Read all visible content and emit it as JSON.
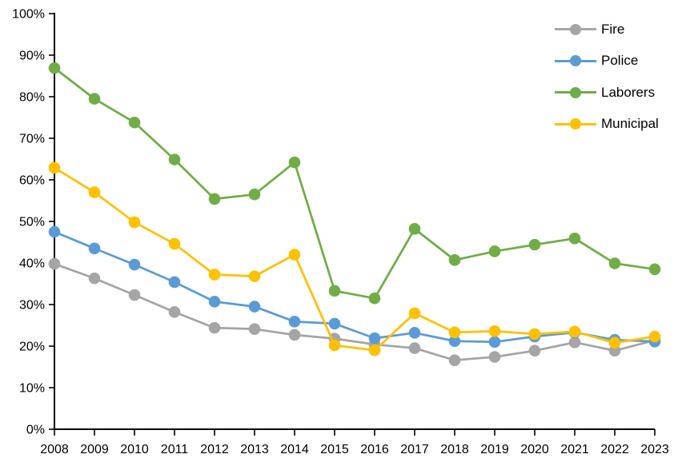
{
  "chart_data": {
    "type": "line",
    "title": "",
    "xlabel": "",
    "ylabel": "",
    "x": [
      2008,
      2009,
      2010,
      2011,
      2012,
      2013,
      2014,
      2015,
      2016,
      2017,
      2018,
      2019,
      2020,
      2021,
      2022,
      2023
    ],
    "series": [
      {
        "name": "Fire",
        "color": "#A5A5A5",
        "values": [
          39.8,
          36.3,
          32.3,
          28.2,
          24.4,
          24.1,
          22.7,
          21.8,
          20.4,
          19.5,
          16.6,
          17.4,
          18.9,
          20.9,
          18.9,
          21.4
        ]
      },
      {
        "name": "Police",
        "color": "#5B9BD5",
        "values": [
          47.5,
          43.5,
          39.6,
          35.4,
          30.7,
          29.5,
          25.9,
          25.4,
          21.9,
          23.2,
          21.2,
          21.0,
          22.3,
          23.3,
          21.5,
          21.1
        ]
      },
      {
        "name": "Laborers",
        "color": "#70AD47",
        "values": [
          86.9,
          79.5,
          73.8,
          64.9,
          55.4,
          56.5,
          64.2,
          33.3,
          31.5,
          48.2,
          40.7,
          42.8,
          44.4,
          45.9,
          39.9,
          38.5
        ]
      },
      {
        "name": "Municipal",
        "color": "#FFC000",
        "values": [
          62.9,
          57.0,
          49.8,
          44.6,
          37.2,
          36.8,
          42.0,
          20.2,
          19.0,
          27.9,
          23.3,
          23.6,
          22.9,
          23.5,
          20.8,
          22.3
        ]
      }
    ],
    "ylim": [
      0,
      100
    ],
    "ytick_step": 10,
    "ytick_labels": [
      "0%",
      "10%",
      "20%",
      "30%",
      "40%",
      "50%",
      "60%",
      "70%",
      "80%",
      "90%",
      "100%"
    ],
    "xtick_labels": [
      "2008",
      "2009",
      "2010",
      "2011",
      "2012",
      "2013",
      "2014",
      "2015",
      "2016",
      "2017",
      "2018",
      "2019",
      "2020",
      "2021",
      "2022",
      "2023"
    ],
    "grid": false,
    "legend_position": "top-right",
    "axis_color": "#000000",
    "text_color": "#000000",
    "background": "#FFFFFF",
    "marker": "circle"
  }
}
